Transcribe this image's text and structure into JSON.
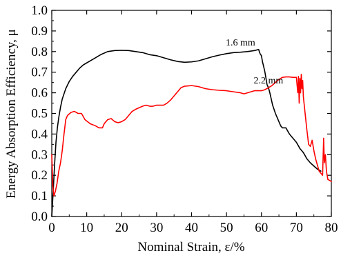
{
  "chart_data": {
    "type": "line",
    "xlabel": "Nominal Strain, ε/%",
    "ylabel": "Energy Absorption Efficiency, μ",
    "xlim": [
      0,
      80
    ],
    "ylim": [
      0,
      1.0
    ],
    "x_ticks": [
      "0",
      "10",
      "20",
      "30",
      "40",
      "50",
      "60",
      "70",
      "80"
    ],
    "y_ticks": [
      "0.0",
      "0.1",
      "0.2",
      "0.3",
      "0.4",
      "0.5",
      "0.6",
      "0.7",
      "0.8",
      "0.9",
      "1.0"
    ],
    "grid": false,
    "legend": "none",
    "annotations": [
      {
        "text": "1.6 mm",
        "x": 54,
        "y": 0.83
      },
      {
        "text": "2.2 mm",
        "x": 62,
        "y": 0.645
      }
    ],
    "series": [
      {
        "name": "1.6 mm",
        "color": "#000000",
        "points": [
          [
            0,
            0.0
          ],
          [
            0.4,
            0.12
          ],
          [
            0.8,
            0.25
          ],
          [
            1.2,
            0.36
          ],
          [
            1.6,
            0.43
          ],
          [
            2.0,
            0.48
          ],
          [
            2.5,
            0.53
          ],
          [
            3.0,
            0.57
          ],
          [
            4.0,
            0.62
          ],
          [
            5.0,
            0.655
          ],
          [
            6.0,
            0.68
          ],
          [
            7.0,
            0.7
          ],
          [
            8.0,
            0.72
          ],
          [
            9.0,
            0.735
          ],
          [
            10.0,
            0.745
          ],
          [
            12.0,
            0.765
          ],
          [
            14.0,
            0.785
          ],
          [
            16.0,
            0.8
          ],
          [
            18.0,
            0.805
          ],
          [
            20.0,
            0.806
          ],
          [
            22.0,
            0.805
          ],
          [
            24.0,
            0.8
          ],
          [
            26.0,
            0.795
          ],
          [
            28.0,
            0.785
          ],
          [
            30.0,
            0.78
          ],
          [
            32.0,
            0.77
          ],
          [
            34.0,
            0.76
          ],
          [
            36.0,
            0.752
          ],
          [
            38.0,
            0.748
          ],
          [
            40.0,
            0.75
          ],
          [
            42.0,
            0.755
          ],
          [
            44.0,
            0.765
          ],
          [
            46.0,
            0.775
          ],
          [
            48.0,
            0.783
          ],
          [
            50.0,
            0.79
          ],
          [
            52.0,
            0.795
          ],
          [
            54.0,
            0.797
          ],
          [
            56.0,
            0.8
          ],
          [
            58.0,
            0.805
          ],
          [
            59.2,
            0.81
          ],
          [
            59.6,
            0.79
          ],
          [
            60.0,
            0.78
          ],
          [
            60.3,
            0.75
          ],
          [
            60.6,
            0.73
          ],
          [
            61.0,
            0.7
          ],
          [
            61.3,
            0.67
          ],
          [
            61.6,
            0.64
          ],
          [
            62.0,
            0.625
          ],
          [
            62.4,
            0.6
          ],
          [
            62.8,
            0.57
          ],
          [
            63.2,
            0.54
          ],
          [
            63.6,
            0.52
          ],
          [
            64.0,
            0.5
          ],
          [
            64.5,
            0.48
          ],
          [
            65.0,
            0.46
          ],
          [
            65.5,
            0.44
          ],
          [
            66.0,
            0.43
          ],
          [
            67.0,
            0.43
          ],
          [
            68.0,
            0.4
          ],
          [
            69.0,
            0.38
          ],
          [
            70.0,
            0.36
          ],
          [
            71.0,
            0.33
          ],
          [
            72.0,
            0.31
          ],
          [
            73.0,
            0.28
          ],
          [
            74.0,
            0.26
          ],
          [
            75.0,
            0.245
          ],
          [
            76.0,
            0.23
          ],
          [
            77.0,
            0.22
          ]
        ]
      },
      {
        "name": "2.2 mm",
        "color": "#ff0000",
        "points": [
          [
            0,
            0.3
          ],
          [
            0.3,
            0.15
          ],
          [
            0.6,
            0.1
          ],
          [
            1.0,
            0.12
          ],
          [
            1.5,
            0.16
          ],
          [
            2.0,
            0.22
          ],
          [
            2.5,
            0.26
          ],
          [
            3.0,
            0.32
          ],
          [
            3.5,
            0.4
          ],
          [
            4.0,
            0.47
          ],
          [
            4.5,
            0.49
          ],
          [
            5.5,
            0.505
          ],
          [
            6.5,
            0.51
          ],
          [
            7.5,
            0.5
          ],
          [
            8.5,
            0.5
          ],
          [
            9.5,
            0.47
          ],
          [
            11.0,
            0.45
          ],
          [
            12.5,
            0.44
          ],
          [
            13.5,
            0.43
          ],
          [
            14.5,
            0.43
          ],
          [
            15.0,
            0.45
          ],
          [
            16.0,
            0.47
          ],
          [
            17.0,
            0.475
          ],
          [
            18.0,
            0.46
          ],
          [
            19.0,
            0.455
          ],
          [
            20.0,
            0.46
          ],
          [
            21.0,
            0.47
          ],
          [
            22.0,
            0.49
          ],
          [
            23.0,
            0.51
          ],
          [
            24.0,
            0.52
          ],
          [
            26.0,
            0.535
          ],
          [
            27.0,
            0.54
          ],
          [
            28.0,
            0.535
          ],
          [
            29.0,
            0.535
          ],
          [
            30.0,
            0.54
          ],
          [
            32.0,
            0.54
          ],
          [
            33.0,
            0.55
          ],
          [
            34.0,
            0.565
          ],
          [
            35.0,
            0.585
          ],
          [
            36.0,
            0.605
          ],
          [
            37.0,
            0.625
          ],
          [
            38.0,
            0.632
          ],
          [
            40.0,
            0.635
          ],
          [
            42.0,
            0.63
          ],
          [
            44.0,
            0.62
          ],
          [
            46.0,
            0.615
          ],
          [
            48.0,
            0.612
          ],
          [
            50.0,
            0.61
          ],
          [
            52.0,
            0.605
          ],
          [
            54.0,
            0.6
          ],
          [
            55.0,
            0.595
          ],
          [
            56.0,
            0.6
          ],
          [
            58.0,
            0.61
          ],
          [
            60.0,
            0.61
          ],
          [
            61.0,
            0.615
          ],
          [
            62.0,
            0.625
          ],
          [
            63.0,
            0.635
          ],
          [
            64.0,
            0.65
          ],
          [
            65.0,
            0.665
          ],
          [
            66.0,
            0.675
          ],
          [
            67.0,
            0.677
          ],
          [
            68.0,
            0.677
          ],
          [
            69.0,
            0.675
          ],
          [
            70.0,
            0.675
          ],
          [
            70.4,
            0.6
          ],
          [
            70.6,
            0.68
          ],
          [
            70.8,
            0.55
          ],
          [
            71.0,
            0.67
          ],
          [
            71.2,
            0.6
          ],
          [
            71.4,
            0.69
          ],
          [
            71.6,
            0.62
          ],
          [
            71.8,
            0.66
          ],
          [
            72.0,
            0.58
          ],
          [
            72.5,
            0.5
          ],
          [
            73.0,
            0.42
          ],
          [
            73.5,
            0.35
          ],
          [
            74.0,
            0.34
          ],
          [
            74.5,
            0.37
          ],
          [
            75.0,
            0.32
          ],
          [
            75.5,
            0.28
          ],
          [
            76.0,
            0.25
          ],
          [
            76.5,
            0.22
          ],
          [
            77.0,
            0.21
          ],
          [
            77.5,
            0.2
          ],
          [
            77.8,
            0.38
          ],
          [
            78.0,
            0.26
          ],
          [
            78.3,
            0.3
          ],
          [
            78.6,
            0.22
          ],
          [
            79.0,
            0.18
          ],
          [
            80.0,
            0.17
          ]
        ]
      }
    ]
  }
}
